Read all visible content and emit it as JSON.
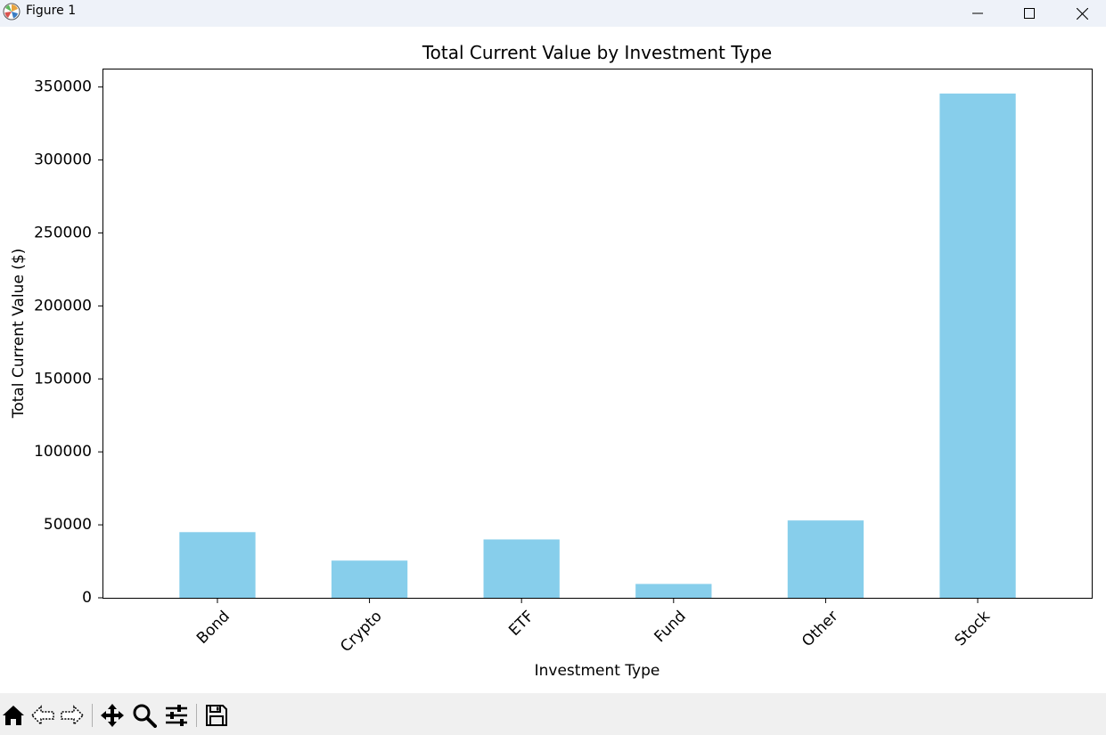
{
  "window": {
    "title": "Figure 1",
    "icons": [
      "matplotlib-app-icon",
      "minimize-icon",
      "maximize-icon",
      "close-icon"
    ]
  },
  "toolbar": {
    "buttons": [
      "home-icon",
      "back-arrow-icon",
      "forward-arrow-icon",
      "pan-icon",
      "zoom-icon",
      "configure-subplots-icon",
      "save-icon"
    ]
  },
  "colors": {
    "bar": "#87ceeb",
    "titlebar": "#eef2f9",
    "toolbar": "#f0f0f0"
  },
  "chart_data": {
    "type": "bar",
    "title": "Total Current Value by Investment Type",
    "xlabel": "Investment Type",
    "ylabel": "Total Current Value ($)",
    "categories": [
      "Bond",
      "Crypto",
      "ETF",
      "Fund",
      "Other",
      "Stock"
    ],
    "values": [
      45000,
      25500,
      40000,
      9500,
      53000,
      345500
    ],
    "ylim": [
      0,
      362000
    ],
    "yticks": [
      0,
      50000,
      100000,
      150000,
      200000,
      250000,
      300000,
      350000
    ],
    "ytick_labels": [
      "0",
      "50000",
      "100000",
      "150000",
      "200000",
      "250000",
      "300000",
      "350000"
    ],
    "xtick_rotation": 45,
    "grid": false,
    "legend": false
  }
}
